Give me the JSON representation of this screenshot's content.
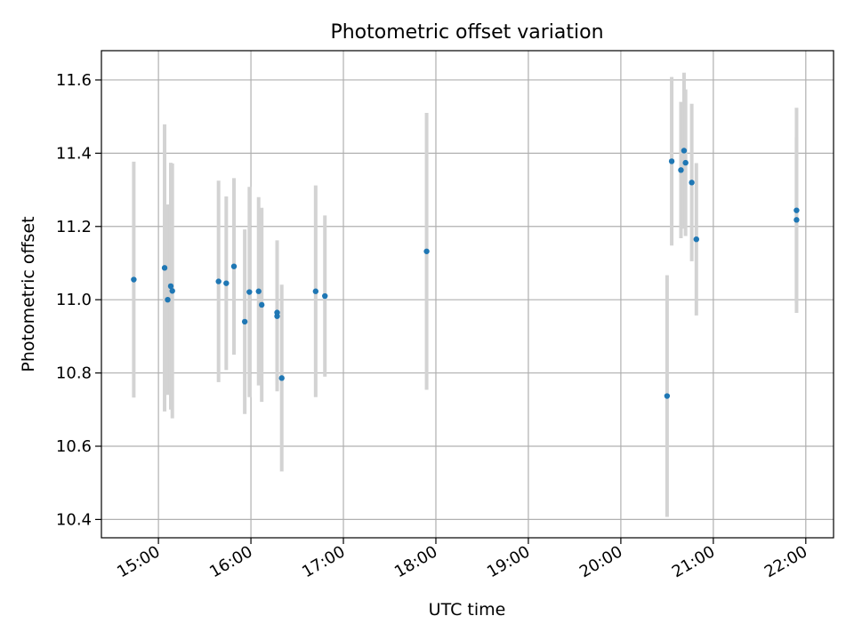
{
  "chart_data": {
    "type": "scatter",
    "title": "Photometric offset variation",
    "xlabel": "UTC time",
    "ylabel": "Photometric offset",
    "xlim": [
      "14:23",
      "22:18"
    ],
    "ylim": [
      10.35,
      11.68
    ],
    "xticks": [
      "15:00",
      "16:00",
      "17:00",
      "18:00",
      "19:00",
      "20:00",
      "21:00",
      "22:00"
    ],
    "yticks": [
      "10.4",
      "10.6",
      "10.8",
      "11.0",
      "11.2",
      "11.4",
      "11.6"
    ],
    "grid": true,
    "colors": {
      "point": "#1f77b4",
      "errorbar": "#d3d3d3",
      "grid": "#b0b0b0"
    },
    "series": [
      {
        "points": [
          {
            "x": "14:44",
            "y": 11.055,
            "err": 0.322
          },
          {
            "x": "15:04",
            "y": 11.087,
            "err": 0.392
          },
          {
            "x": "15:06",
            "y": 11.0,
            "err": 0.26
          },
          {
            "x": "15:08",
            "y": 11.037,
            "err": 0.337
          },
          {
            "x": "15:09",
            "y": 11.024,
            "err": 0.348
          },
          {
            "x": "15:39",
            "y": 11.05,
            "err": 0.275
          },
          {
            "x": "15:44",
            "y": 11.045,
            "err": 0.237
          },
          {
            "x": "15:49",
            "y": 11.091,
            "err": 0.241
          },
          {
            "x": "15:56",
            "y": 10.94,
            "err": 0.252
          },
          {
            "x": "15:59",
            "y": 11.021,
            "err": 0.287
          },
          {
            "x": "16:05",
            "y": 11.023,
            "err": 0.257
          },
          {
            "x": "16:07",
            "y": 10.986,
            "err": 0.265
          },
          {
            "x": "16:17",
            "y": 10.955,
            "err": 0.205
          },
          {
            "x": "16:17",
            "y": 10.965,
            "err": 0.197
          },
          {
            "x": "16:20",
            "y": 10.786,
            "err": 0.255
          },
          {
            "x": "16:42",
            "y": 11.023,
            "err": 0.289
          },
          {
            "x": "16:48",
            "y": 11.01,
            "err": 0.22
          },
          {
            "x": "17:54",
            "y": 11.132,
            "err": 0.378
          },
          {
            "x": "20:30",
            "y": 10.737,
            "err": 0.33
          },
          {
            "x": "20:33",
            "y": 11.378,
            "err": 0.23
          },
          {
            "x": "20:39",
            "y": 11.354,
            "err": 0.186
          },
          {
            "x": "20:41",
            "y": 11.407,
            "err": 0.213
          },
          {
            "x": "20:42",
            "y": 11.374,
            "err": 0.2
          },
          {
            "x": "20:46",
            "y": 11.32,
            "err": 0.215
          },
          {
            "x": "20:49",
            "y": 11.165,
            "err": 0.208
          },
          {
            "x": "21:54",
            "y": 11.244,
            "err": 0.28
          },
          {
            "x": "21:54",
            "y": 11.218,
            "err": 0.226
          }
        ]
      }
    ]
  }
}
